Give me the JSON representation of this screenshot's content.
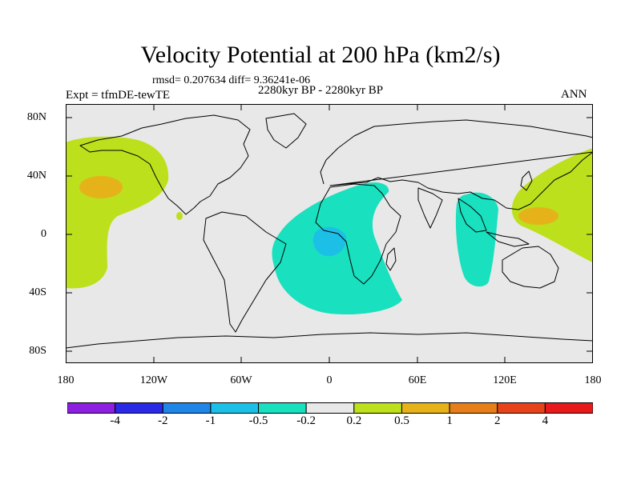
{
  "map": {
    "title": "Velocity Potential at 200 hPa (km2/s)",
    "stats": "rmsd= 0.207634 diff= 9.36241e-06",
    "subtitle": "2280kyr BP - 2280kyr BP",
    "experiment": "Expt = tfmDE-tewTE",
    "season": "ANN",
    "lat_labels": [
      "80N",
      "40N",
      "0",
      "40S",
      "80S"
    ],
    "lon_labels": [
      "180",
      "120W",
      "60W",
      "0",
      "60E",
      "120E",
      "180"
    ],
    "colorbar": {
      "labels": [
        "-4",
        "-2",
        "-1",
        "-0.5",
        "-0.2",
        "0.2",
        "0.5",
        "1",
        "2",
        "4"
      ],
      "colors": [
        "#8c1fe0",
        "#2a2ae6",
        "#1f85e6",
        "#1cc0e6",
        "#19e0bf",
        "#e8e8e8",
        "#bce01c",
        "#e6b21a",
        "#e67f1a",
        "#e6431a",
        "#e61a1a"
      ]
    }
  }
}
